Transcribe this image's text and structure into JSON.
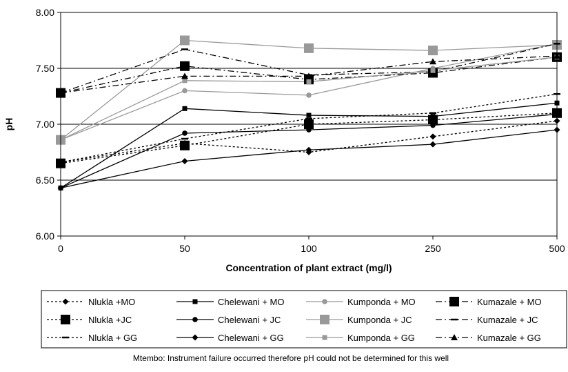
{
  "chart_data": {
    "type": "line",
    "xlabel": "Concentration of plant extract (mg/l)",
    "ylabel": "pH",
    "categories": [
      "0",
      "50",
      "100",
      "250",
      "500"
    ],
    "y_ticks": [
      "6.00",
      "6.50",
      "7.00",
      "7.50",
      "8.00"
    ],
    "ylim": [
      6.0,
      8.0
    ],
    "grid": "horizontal lines at 6.50, 7.00, 7.50",
    "legend_position": "bottom",
    "series": [
      {
        "name": "Nlukla +MO",
        "values": [
          6.66,
          6.83,
          6.75,
          6.89,
          7.03
        ],
        "color": "#000000",
        "dash": "dotted",
        "marker": "diamond"
      },
      {
        "name": "Chelewani + MO",
        "values": [
          6.43,
          7.14,
          7.08,
          7.07,
          7.19
        ],
        "color": "#000000",
        "dash": "solid",
        "marker": "square-small"
      },
      {
        "name": "Kumponda + MO",
        "values": [
          6.86,
          7.3,
          7.26,
          7.5,
          7.72
        ],
        "color": "#999999",
        "dash": "solid",
        "marker": "circle"
      },
      {
        "name": "Kumazale + MO",
        "values": [
          7.28,
          7.52,
          7.4,
          7.46,
          7.6
        ],
        "color": "#000000",
        "dash": "dashdot",
        "marker": "square-large"
      },
      {
        "name": "Nlukla +JC",
        "values": [
          6.65,
          6.81,
          7.0,
          7.04,
          7.1
        ],
        "color": "#000000",
        "dash": "dotted",
        "marker": "square-large"
      },
      {
        "name": "Chelewani + JC",
        "values": [
          6.43,
          6.92,
          6.95,
          6.99,
          7.09
        ],
        "color": "#000000",
        "dash": "solid",
        "marker": "circle"
      },
      {
        "name": "Kumponda + JC",
        "values": [
          6.86,
          7.75,
          7.68,
          7.66,
          7.71
        ],
        "color": "#999999",
        "dash": "solid",
        "marker": "square-large"
      },
      {
        "name": "Kumazale + JC",
        "values": [
          7.28,
          7.67,
          7.44,
          7.47,
          7.72
        ],
        "color": "#000000",
        "dash": "dashdot",
        "marker": "dash"
      },
      {
        "name": "Nlukla + GG",
        "values": [
          6.66,
          6.87,
          7.05,
          7.1,
          7.27
        ],
        "color": "#000000",
        "dash": "dotted",
        "marker": "dash"
      },
      {
        "name": "Chelewani + GG",
        "values": [
          6.43,
          6.67,
          6.77,
          6.82,
          6.95
        ],
        "color": "#000000",
        "dash": "solid",
        "marker": "diamond"
      },
      {
        "name": "Kumponda + GG",
        "values": [
          6.86,
          7.39,
          7.38,
          7.48,
          7.6
        ],
        "color": "#999999",
        "dash": "solid",
        "marker": "square-small"
      },
      {
        "name": "Kumazale + GG",
        "values": [
          7.28,
          7.43,
          7.43,
          7.56,
          7.61
        ],
        "color": "#000000",
        "dash": "dashdot",
        "marker": "triangle"
      }
    ],
    "note": "Mtembo: Instrument failure occurred therefore pH could not be determined for this well"
  }
}
